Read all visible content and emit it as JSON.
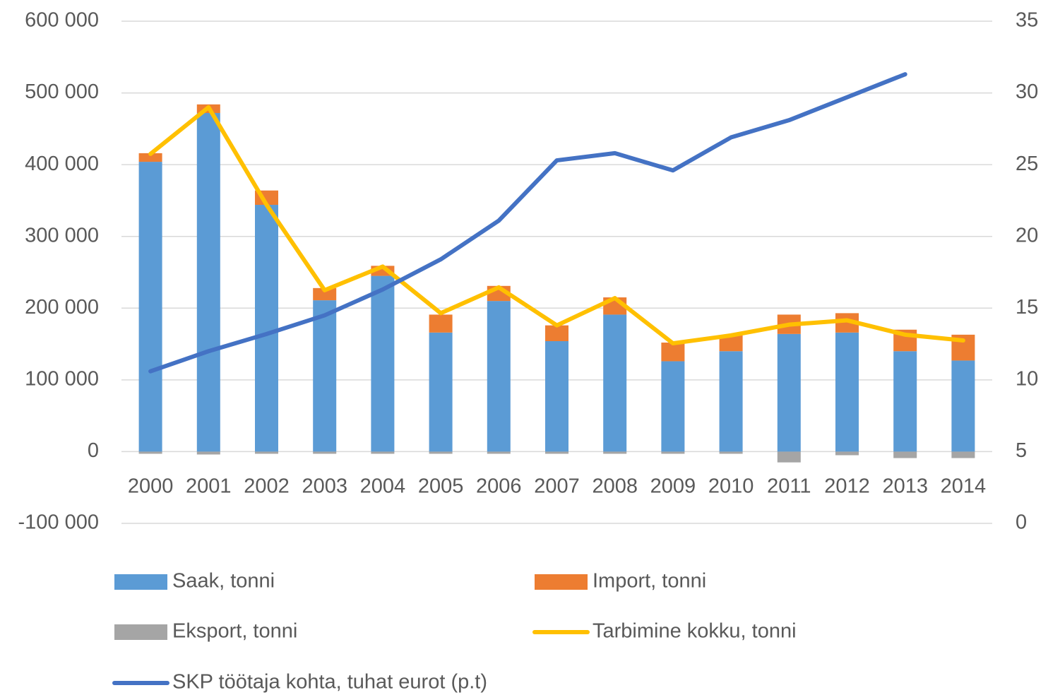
{
  "chart_data": {
    "type": "combo",
    "categories": [
      "2000",
      "2001",
      "2002",
      "2003",
      "2004",
      "2005",
      "2006",
      "2007",
      "2008",
      "2009",
      "2010",
      "2011",
      "2012",
      "2013",
      "2014"
    ],
    "series": [
      {
        "name": "Saak, tonni",
        "type": "bar",
        "color": "#5b9bd5",
        "values": [
          404000,
          472000,
          344000,
          211000,
          245000,
          166000,
          210000,
          154000,
          191000,
          126000,
          140000,
          164000,
          166000,
          140000,
          127000
        ]
      },
      {
        "name": "Import, tonni",
        "type": "bar",
        "color": "#ed7d31",
        "values": [
          12000,
          12000,
          20000,
          17000,
          14000,
          25000,
          21000,
          22000,
          24000,
          26000,
          22000,
          27000,
          27000,
          30000,
          36000
        ]
      },
      {
        "name": "Eksport, tonni",
        "type": "bar",
        "color": "#a5a5a5",
        "values": [
          -3000,
          -4000,
          -3000,
          -3000,
          -3000,
          -3000,
          -3000,
          -3000,
          -3000,
          -3000,
          -3000,
          -15000,
          -5000,
          -9000,
          -9000
        ]
      },
      {
        "name": "Tarbimine kokku, tonni",
        "type": "line",
        "color": "#ffc000",
        "values": [
          415000,
          480000,
          344000,
          225000,
          258000,
          193000,
          229000,
          176000,
          214000,
          151000,
          162000,
          177000,
          183000,
          163000,
          155000
        ]
      },
      {
        "name": "SKP töötaja kohta, tuhat eurot (p.t)",
        "type": "line",
        "axis": "y2",
        "color": "#4472c4",
        "values": [
          10.6,
          12.0,
          13.2,
          14.5,
          16.3,
          18.4,
          21.1,
          25.3,
          25.8,
          24.6,
          26.9,
          28.1,
          29.7,
          31.3,
          null
        ]
      }
    ],
    "ylim": [
      -100000,
      600000
    ],
    "yticks": [
      {
        "value": -100000,
        "label": "-100 000"
      },
      0,
      {
        "value": 100000,
        "label": "100 000"
      },
      {
        "value": 200000,
        "label": "200 000"
      },
      {
        "value": 300000,
        "label": "300 000"
      },
      {
        "value": 400000,
        "label": "400 000"
      },
      {
        "value": 500000,
        "label": "500 000"
      },
      {
        "value": 600000,
        "label": "600 000"
      }
    ],
    "y2lim": [
      0,
      35
    ],
    "y2ticks": [
      0,
      5,
      10,
      15,
      20,
      25,
      30,
      35
    ],
    "grid": true,
    "legend": "bottom"
  }
}
